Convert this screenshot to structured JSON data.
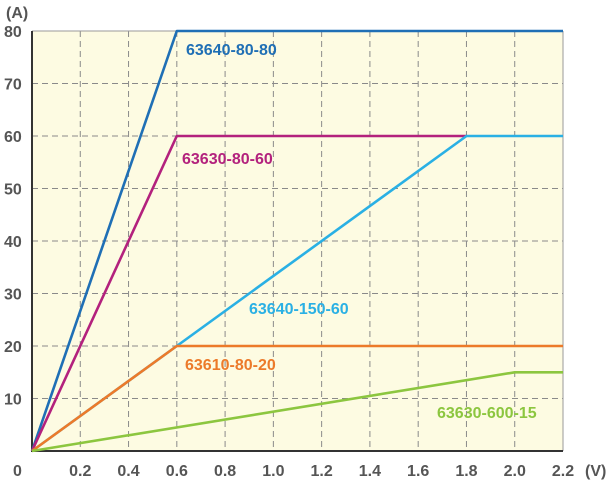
{
  "chart_data": {
    "type": "line",
    "x_unit": "(V)",
    "y_unit": "(A)",
    "xlim": [
      0,
      2.2
    ],
    "ylim": [
      0,
      80
    ],
    "x_ticks": [
      "0",
      "0.2",
      "0.4",
      "0.6",
      "0.8",
      "1.0",
      "1.2",
      "1.4",
      "1.6",
      "1.8",
      "2.0",
      "2.2"
    ],
    "y_ticks": [
      "10",
      "20",
      "30",
      "40",
      "50",
      "60",
      "70",
      "80"
    ],
    "grid": true,
    "background_color": "#fdfbe2",
    "series": [
      {
        "name": "63640-80-80",
        "color": "#1f6fb5",
        "points": [
          [
            0,
            0
          ],
          [
            0.6,
            80
          ],
          [
            2.2,
            80
          ]
        ]
      },
      {
        "name": "63630-80-60",
        "color": "#b3217d",
        "points": [
          [
            0,
            0
          ],
          [
            0.6,
            60
          ],
          [
            1.8,
            60
          ]
        ]
      },
      {
        "name": "63640-150-60",
        "color": "#2ab0e4",
        "points": [
          [
            0,
            0
          ],
          [
            0.6,
            20
          ],
          [
            1.8,
            60
          ],
          [
            2.2,
            60
          ]
        ]
      },
      {
        "name": "63610-80-20",
        "color": "#ec7a2a",
        "points": [
          [
            0,
            0
          ],
          [
            0.6,
            20
          ],
          [
            2.2,
            20
          ]
        ]
      },
      {
        "name": "63630-600-15",
        "color": "#8cc63f",
        "points": [
          [
            0,
            0
          ],
          [
            2.0,
            15
          ],
          [
            2.2,
            15
          ]
        ]
      }
    ]
  }
}
